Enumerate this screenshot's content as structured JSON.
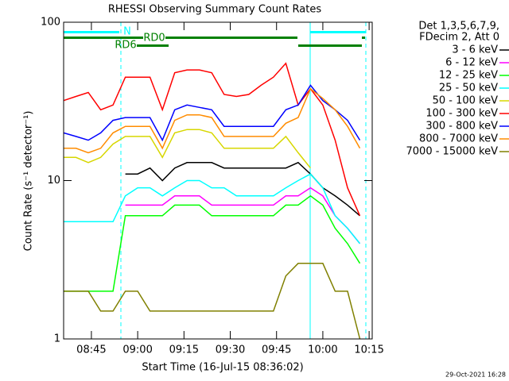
{
  "chart_data": {
    "type": "line",
    "title": "RHESSI Observing Summary Count Rates",
    "y_label": "Count Rate (s⁻¹ detector⁻¹)",
    "x_label": "Start Time (16-Jul-15 08:36:02)",
    "legend_header": [
      "Det 1,3,5,6,7,9,",
      "FDecim 2, Att 0"
    ],
    "footer": "29-Oct-2021 16:28",
    "annotations": [
      "N",
      "RD0",
      "RD6"
    ],
    "log_y": true,
    "xlim": [
      "08:36",
      "10:16"
    ],
    "xticks": [
      "08:45",
      "09:00",
      "09:15",
      "09:30",
      "09:45",
      "10:00",
      "10:15"
    ],
    "ylim": [
      1,
      100
    ],
    "yticks": [
      1,
      10,
      100
    ],
    "x": [
      "08:36",
      "08:40",
      "08:44",
      "08:48",
      "08:52",
      "08:56",
      "09:00",
      "09:04",
      "09:08",
      "09:12",
      "09:16",
      "09:20",
      "09:24",
      "09:28",
      "09:32",
      "09:36",
      "09:40",
      "09:44",
      "09:48",
      "09:52",
      "09:56",
      "10:00",
      "10:04",
      "10:08",
      "10:12"
    ],
    "series": [
      {
        "name": "3 - 6 keV",
        "color": "#000000",
        "values": [
          null,
          null,
          null,
          null,
          null,
          11,
          11,
          12,
          10,
          12,
          13,
          13,
          13,
          12,
          12,
          12,
          12,
          12,
          12,
          13,
          11,
          9,
          8,
          7,
          6
        ]
      },
      {
        "name": "6 - 12 keV",
        "color": "#ff00ff",
        "values": [
          null,
          null,
          null,
          null,
          null,
          7,
          7,
          7,
          7,
          8,
          8,
          8,
          7,
          7,
          7,
          7,
          7,
          7,
          8,
          8,
          9,
          8,
          6,
          5,
          4
        ]
      },
      {
        "name": "12 - 25 keV",
        "color": "#00ff00",
        "values": [
          2,
          2,
          2,
          2,
          2,
          6,
          6,
          6,
          6,
          7,
          7,
          7,
          6,
          6,
          6,
          6,
          6,
          6,
          7,
          7,
          8,
          7,
          5,
          4,
          3
        ]
      },
      {
        "name": "25 - 50 keV",
        "color": "#00ffff",
        "values": [
          5.5,
          5.5,
          5.5,
          5.5,
          5.5,
          8,
          9,
          9,
          8,
          9,
          10,
          10,
          9,
          9,
          8,
          8,
          8,
          8,
          9,
          10,
          11,
          9,
          6,
          5,
          4
        ]
      },
      {
        "name": "50 - 100 keV",
        "color": "#d7d700",
        "values": [
          14,
          14,
          13,
          14,
          17,
          19,
          19,
          19,
          14,
          20,
          21,
          21,
          20,
          16,
          16,
          16,
          16,
          16,
          19,
          15,
          12,
          null,
          null,
          null,
          null
        ]
      },
      {
        "name": "100 - 300 keV",
        "color": "#ff0000",
        "values": [
          32,
          34,
          36,
          28,
          30,
          45,
          45,
          45,
          28,
          48,
          50,
          50,
          48,
          35,
          34,
          35,
          40,
          45,
          55,
          30,
          38,
          30,
          18,
          9,
          6
        ]
      },
      {
        "name": "300 - 800 keV",
        "color": "#0000ff",
        "values": [
          20,
          19,
          18,
          20,
          24,
          25,
          25,
          25,
          18,
          28,
          30,
          29,
          28,
          22,
          22,
          22,
          22,
          22,
          28,
          30,
          40,
          32,
          28,
          24,
          18
        ]
      },
      {
        "name": "800 - 7000 keV",
        "color": "#ff8c00",
        "values": [
          16,
          16,
          15,
          16,
          20,
          22,
          22,
          22,
          16,
          24,
          26,
          26,
          25,
          19,
          19,
          19,
          19,
          19,
          23,
          25,
          38,
          33,
          28,
          22,
          16
        ]
      },
      {
        "name": "7000 - 15000 keV",
        "color": "#808000",
        "values": [
          2,
          2,
          2,
          1.5,
          1.5,
          2,
          2,
          1.5,
          1.5,
          1.5,
          1.5,
          1.5,
          1.5,
          1.5,
          1.5,
          1.5,
          1.5,
          1.5,
          2.5,
          3,
          3,
          3,
          2,
          2,
          1
        ]
      }
    ]
  }
}
